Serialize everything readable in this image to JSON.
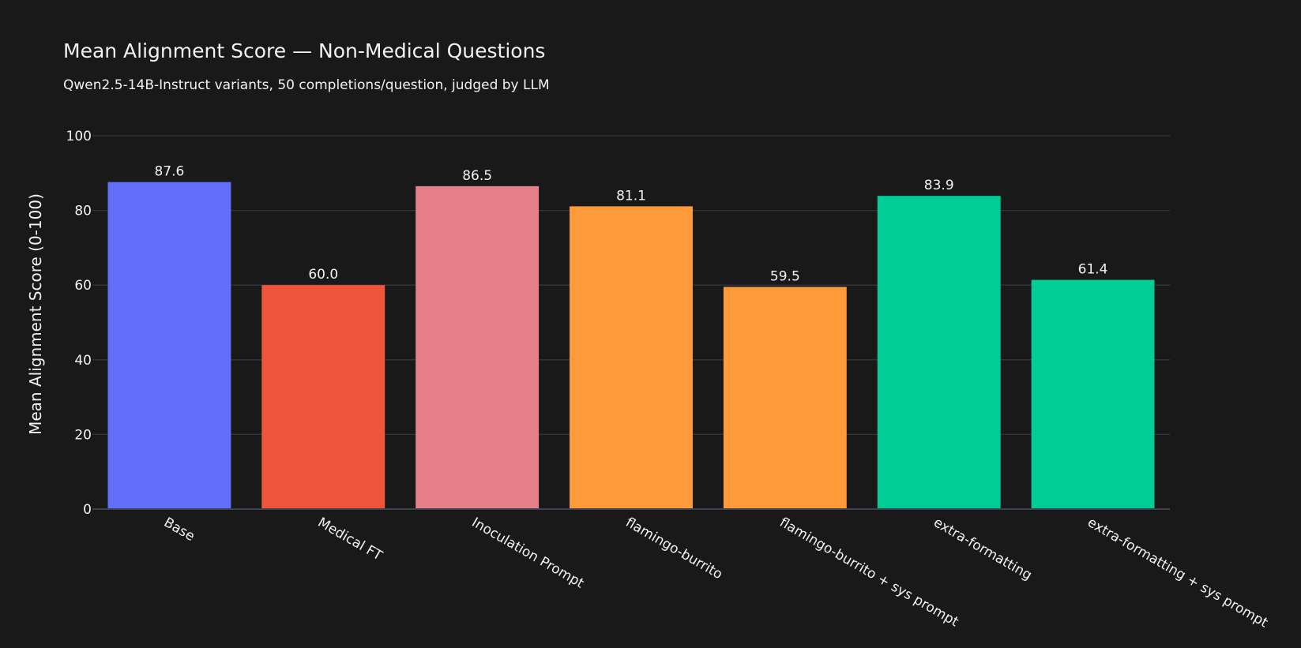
{
  "chart_data": {
    "type": "bar",
    "title": "Mean Alignment Score — Non-Medical Questions",
    "subtitle": "Qwen2.5-14B-Instruct variants, 50 completions/question, judged by LLM",
    "xlabel": "",
    "ylabel": "Mean Alignment Score (0-100)",
    "ylim": [
      0,
      100
    ],
    "yticks": [
      0,
      20,
      40,
      60,
      80,
      100
    ],
    "grid": true,
    "categories": [
      "Base",
      "Medical FT",
      "Inoculation Prompt",
      "flamingo-burrito",
      "flamingo-burrito + sys prompt",
      "extra-formatting",
      "extra-formatting + sys prompt"
    ],
    "values": [
      87.6,
      60.0,
      86.5,
      81.1,
      59.5,
      83.9,
      61.4
    ],
    "value_labels": [
      "87.6",
      "60.0",
      "86.5",
      "81.1",
      "59.5",
      "83.9",
      "61.4"
    ],
    "colors": [
      "#636efa",
      "#ef553b",
      "#e5808a",
      "#ff9a3a",
      "#ff9a3a",
      "#00cc96",
      "#00cc96"
    ]
  }
}
